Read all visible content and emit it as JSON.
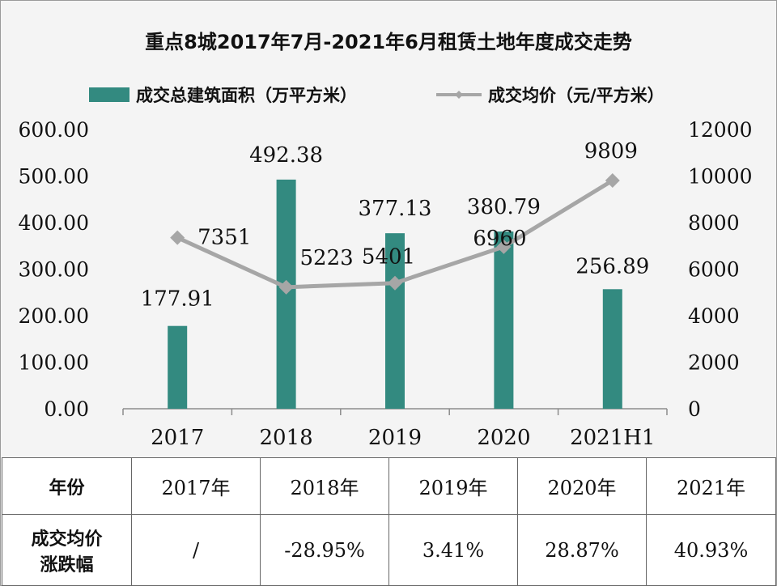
{
  "chart_data": {
    "type": "bar",
    "title": "重点8城2017年7月-2021年6月租赁土地年度成交走势",
    "categories": [
      "2017",
      "2018",
      "2019",
      "2020",
      "2021H1"
    ],
    "series": [
      {
        "name": "成交总建筑面积（万平方米）",
        "type": "bar",
        "axis": "left",
        "color": "#338a80",
        "values": [
          177.91,
          492.38,
          377.13,
          380.79,
          256.89
        ],
        "labels": [
          "177.91",
          "492.38",
          "377.13",
          "380.79",
          "256.89"
        ]
      },
      {
        "name": "成交均价（元/平方米）",
        "type": "line",
        "axis": "right",
        "color": "#a6a6a6",
        "values": [
          7351,
          5223,
          5401,
          6960,
          9809
        ],
        "labels": [
          "7351",
          "5223",
          "5401",
          "6960",
          "9809"
        ]
      }
    ],
    "y_left": {
      "min": 0,
      "max": 600,
      "ticks": [
        "0.00",
        "100.00",
        "200.00",
        "300.00",
        "400.00",
        "500.00",
        "600.00"
      ]
    },
    "y_right": {
      "min": 0,
      "max": 12000,
      "ticks": [
        "0",
        "2000",
        "4000",
        "6000",
        "8000",
        "10000",
        "12000"
      ]
    },
    "legend_position": "top",
    "grid": false
  },
  "table": {
    "header_label": "年份",
    "years": [
      "2017年",
      "2018年",
      "2019年",
      "2020年",
      "2021年"
    ],
    "row_label_line1": "成交均价",
    "row_label_line2": "涨跌幅",
    "changes": [
      "/",
      "-28.95%",
      "3.41%",
      "28.87%",
      "40.93%"
    ],
    "change_colors": [
      "#111111",
      "#5b9a3d",
      "#c0141a",
      "#c0141a",
      "#c0141a"
    ]
  }
}
